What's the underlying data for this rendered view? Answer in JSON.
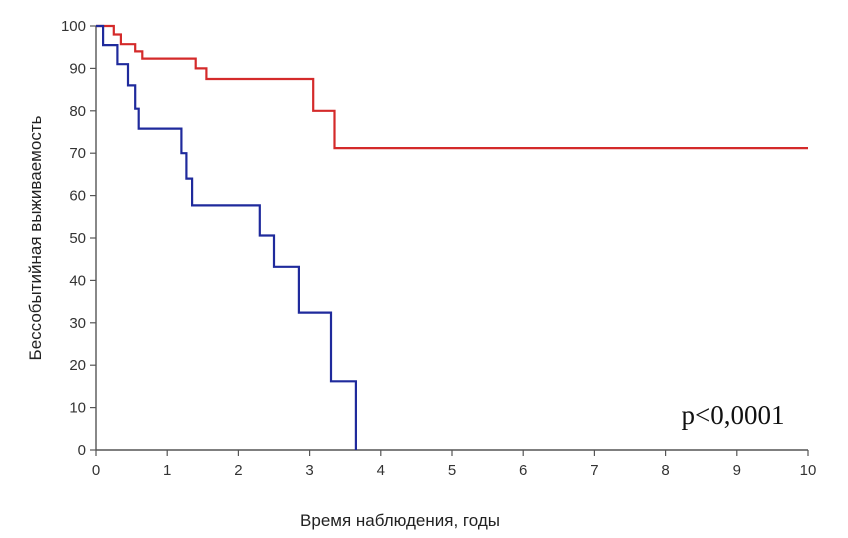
{
  "chart_data": {
    "type": "line",
    "title": "",
    "xlabel": "Время наблюдения, годы",
    "ylabel": "Бессобытийная выживаемость",
    "xlim": [
      0,
      10
    ],
    "ylim": [
      0,
      100
    ],
    "xticks": [
      "0",
      "1",
      "2",
      "3",
      "4",
      "5",
      "6",
      "7",
      "8",
      "9",
      "10"
    ],
    "yticks": [
      "0",
      "10",
      "20",
      "30",
      "40",
      "50",
      "60",
      "70",
      "80",
      "90",
      "100"
    ],
    "grid": false,
    "step": true,
    "series": [
      {
        "color": "#d42a2a",
        "x": [
          0,
          0.25,
          0.35,
          0.55,
          0.65,
          1.4,
          1.55,
          3.05,
          3.35,
          10
        ],
        "y": [
          100,
          98,
          95.7,
          94,
          92.3,
          90,
          87.5,
          80,
          71.2,
          71.2
        ]
      },
      {
        "color": "#1f2a9c",
        "x": [
          0,
          0.1,
          0.3,
          0.45,
          0.55,
          0.6,
          1.2,
          1.27,
          1.35,
          2.3,
          2.5,
          2.85,
          3.3,
          3.65
        ],
        "y": [
          100,
          95.5,
          91,
          86,
          80.5,
          75.8,
          70,
          64,
          57.7,
          50.6,
          43.2,
          32.4,
          16.2,
          0
        ]
      }
    ],
    "annotations": [
      {
        "text": "p<0,0001"
      }
    ]
  }
}
